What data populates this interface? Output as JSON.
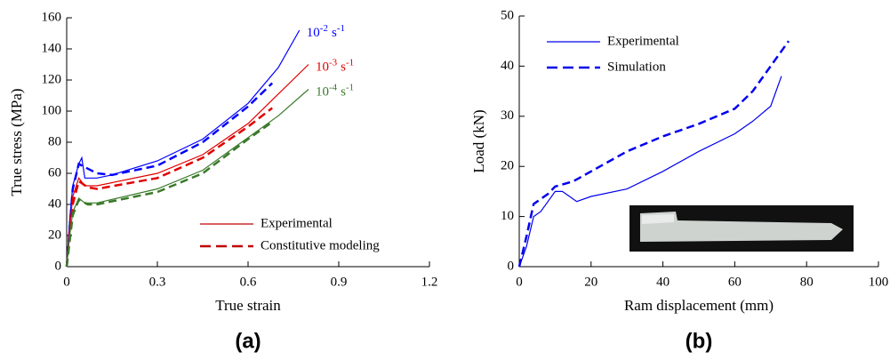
{
  "chart_data": [
    {
      "type": "line",
      "panel_label": "(a)",
      "x_label": "True strain",
      "y_label": "True stress (MPa)",
      "xlim": [
        0,
        1.2
      ],
      "xticks": [
        0,
        0.3,
        0.6,
        0.9,
        1.2
      ],
      "ylim": [
        0,
        160
      ],
      "yticks": [
        0,
        20,
        40,
        60,
        80,
        100,
        120,
        140,
        160
      ],
      "series": [
        {
          "color": "#0000ff",
          "dash": false,
          "x": [
            0,
            0.01,
            0.02,
            0.04,
            0.05,
            0.06,
            0.1,
            0.15,
            0.3,
            0.45,
            0.6,
            0.7,
            0.77
          ],
          "values": [
            0,
            30,
            52,
            66,
            70,
            57,
            57,
            59,
            68,
            82,
            105,
            128,
            152
          ]
        },
        {
          "color": "#0000ff",
          "dash": true,
          "x": [
            0,
            0.02,
            0.04,
            0.06,
            0.1,
            0.15,
            0.3,
            0.45,
            0.6,
            0.68
          ],
          "values": [
            0,
            50,
            66,
            64,
            60,
            59,
            65,
            80,
            103,
            118
          ]
        },
        {
          "color": "#e00000",
          "dash": false,
          "x": [
            0,
            0.01,
            0.02,
            0.04,
            0.06,
            0.1,
            0.3,
            0.45,
            0.6,
            0.7,
            0.8
          ],
          "values": [
            0,
            25,
            45,
            57,
            52,
            52,
            60,
            72,
            92,
            111,
            130
          ]
        },
        {
          "color": "#e00000",
          "dash": true,
          "x": [
            0,
            0.02,
            0.04,
            0.07,
            0.1,
            0.3,
            0.45,
            0.6,
            0.68
          ],
          "values": [
            0,
            40,
            55,
            51,
            50,
            57,
            70,
            90,
            102
          ]
        },
        {
          "color": "#3a7a2a",
          "dash": false,
          "x": [
            0,
            0.01,
            0.02,
            0.04,
            0.06,
            0.1,
            0.3,
            0.45,
            0.6,
            0.7,
            0.8
          ],
          "values": [
            0,
            20,
            35,
            44,
            41,
            41,
            50,
            62,
            83,
            97,
            114
          ]
        },
        {
          "color": "#3a7a2a",
          "dash": true,
          "x": [
            0,
            0.02,
            0.04,
            0.07,
            0.1,
            0.3,
            0.45,
            0.6,
            0.68
          ],
          "values": [
            0,
            33,
            43,
            40,
            40,
            48,
            60,
            82,
            93
          ]
        }
      ],
      "annotations": [
        {
          "base": "10",
          "power": "-2",
          "unit": "s",
          "unit_power": "-1",
          "color": "#0000ff"
        },
        {
          "base": "10",
          "power": "-3",
          "unit": "s",
          "unit_power": "-1",
          "color": "#e00000"
        },
        {
          "base": "10",
          "power": "-4",
          "unit": "s",
          "unit_power": "-1",
          "color": "#3a7a2a"
        }
      ],
      "legend": [
        {
          "name": "Experimental",
          "color": "#c00000",
          "dash": false
        },
        {
          "name": "Constitutive modeling",
          "color": "#c00000",
          "dash": true
        }
      ]
    },
    {
      "type": "line",
      "panel_label": "(b)",
      "x_label": "Ram displacement (mm)",
      "y_label": "Load (kN)",
      "xlim": [
        0,
        100
      ],
      "xticks": [
        0,
        20,
        40,
        60,
        80,
        100
      ],
      "ylim": [
        0,
        50
      ],
      "yticks": [
        0,
        10,
        20,
        30,
        40,
        50
      ],
      "series": [
        {
          "name": "Experimental",
          "color": "#0000ee",
          "dash": false,
          "x": [
            0,
            2,
            4,
            6,
            8,
            10,
            12,
            14,
            16,
            20,
            30,
            40,
            50,
            60,
            65,
            70,
            73
          ],
          "values": [
            0,
            4,
            10,
            11,
            13,
            15,
            15,
            14,
            13,
            14,
            15.5,
            19,
            23,
            26.5,
            29,
            32,
            38
          ]
        },
        {
          "name": "Simulation",
          "color": "#0000ee",
          "dash": true,
          "x": [
            0,
            2,
            4,
            6,
            8,
            10,
            15,
            20,
            30,
            40,
            50,
            60,
            65,
            70,
            75
          ],
          "values": [
            0,
            6,
            12.5,
            13.5,
            14.5,
            16,
            17,
            19,
            23,
            26,
            28.5,
            31.5,
            35,
            40,
            45
          ]
        }
      ]
    }
  ]
}
